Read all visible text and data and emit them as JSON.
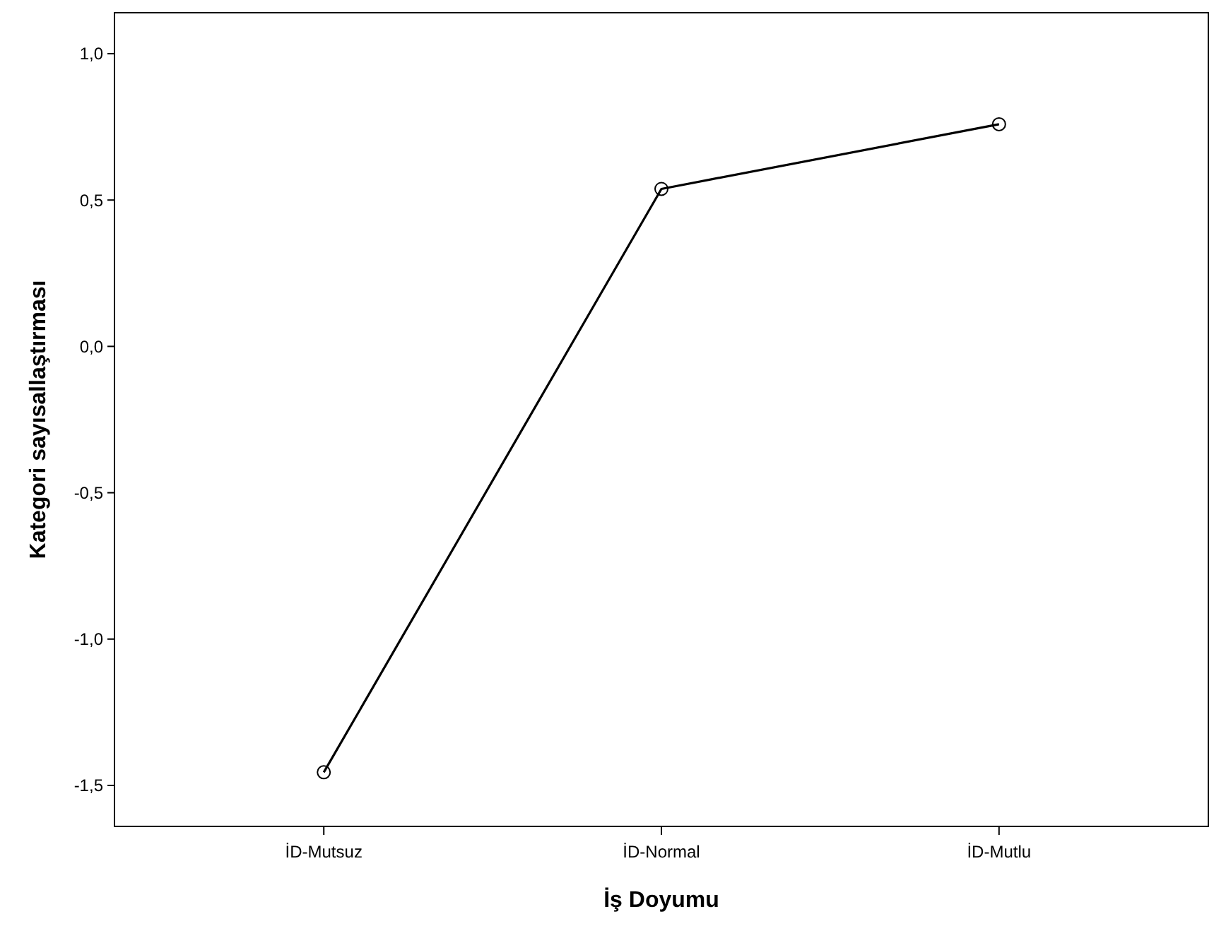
{
  "chart_data": {
    "type": "line",
    "xlabel": "İş Doyumu",
    "ylabel": "Kategori sayısallaştırması",
    "categories": [
      "İD-Mutsuz",
      "İD-Normal",
      "İD-Mutlu"
    ],
    "series": [
      {
        "color": "#000000",
        "values": [
          -1.455,
          0.538,
          0.759
        ]
      }
    ],
    "ylim": [
      -1.64,
      1.14
    ],
    "yticks": [
      {
        "value": -1.5,
        "label": "-1,5"
      },
      {
        "value": -1,
        "label": "-1,0"
      },
      {
        "value": -0.5,
        "label": "-0,5"
      },
      {
        "value": 0,
        "label": "0,0"
      },
      {
        "value": 0.5,
        "label": "0,5"
      },
      {
        "value": 1,
        "label": "1,0"
      }
    ],
    "marker": "circle",
    "line_style": "solid",
    "grid": false
  }
}
